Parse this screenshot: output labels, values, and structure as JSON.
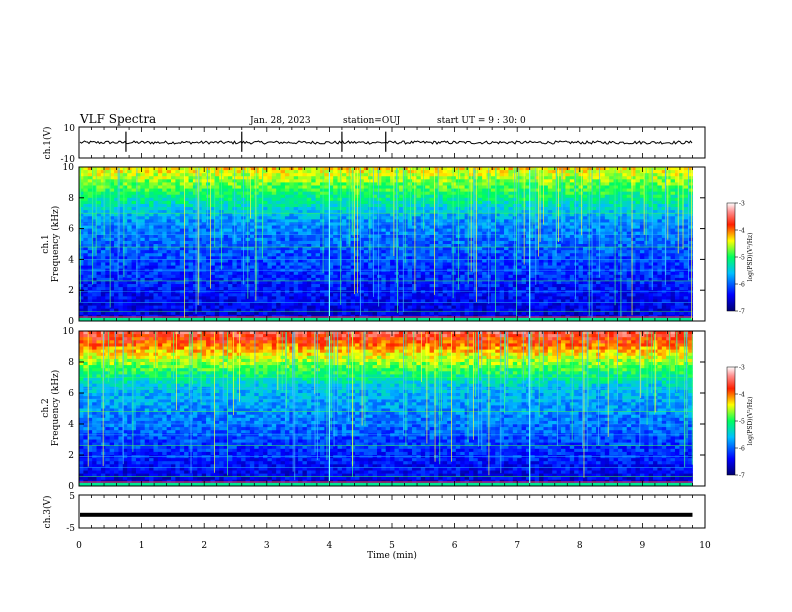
{
  "header": {
    "title": "VLF Spectra",
    "date": "Jan. 28, 2023",
    "station": "station=OUJ",
    "start": "start UT =  9 : 30: 0"
  },
  "chart_data": [
    {
      "id": "ch1-waveform",
      "type": "line",
      "ylabel": "ch.1(V)",
      "ylim": [
        -10,
        10
      ],
      "yticks": [
        "10",
        "-10"
      ],
      "xlim": [
        0,
        10
      ],
      "baseline": 0,
      "noise_amplitude": 1.0,
      "spikes_x": [
        0.75,
        2.6,
        4.2,
        4.9
      ]
    },
    {
      "id": "ch1-spectrogram",
      "type": "heatmap",
      "ylabel": "ch.1\nFrequency (kHz)",
      "ylim": [
        0,
        10
      ],
      "yticks": [
        "0",
        "2",
        "4",
        "6",
        "8",
        "10"
      ],
      "xlim": [
        0,
        10
      ],
      "data_end_min": 9.8
    },
    {
      "id": "ch2-spectrogram",
      "type": "heatmap",
      "ylabel": "ch.2\nFrequency (kHz)",
      "ylim": [
        0,
        10
      ],
      "yticks": [
        "0",
        "2",
        "4",
        "6",
        "8",
        "10"
      ],
      "xlim": [
        0,
        10
      ],
      "data_end_min": 9.8
    },
    {
      "id": "ch3-waveform",
      "type": "line",
      "ylabel": "ch.3(V)",
      "ylim": [
        -5,
        5
      ],
      "yticks": [
        "5",
        "-5"
      ],
      "xlim": [
        0,
        10
      ],
      "baseline": -1,
      "xlabel": "Time (min)",
      "xticks": [
        "0",
        "1",
        "2",
        "3",
        "4",
        "5",
        "6",
        "7",
        "8",
        "9",
        "10"
      ]
    }
  ],
  "colorbar": {
    "label": "log(PSD)(V²/Hz)",
    "ticks": [
      "-3",
      "-4",
      "-5",
      "-6",
      "-7"
    ],
    "range": [
      -7,
      -3
    ],
    "colors": [
      "#000080",
      "#0000ff",
      "#00ffff",
      "#00ff00",
      "#ffff00",
      "#ff0000",
      "#ffffff"
    ]
  }
}
